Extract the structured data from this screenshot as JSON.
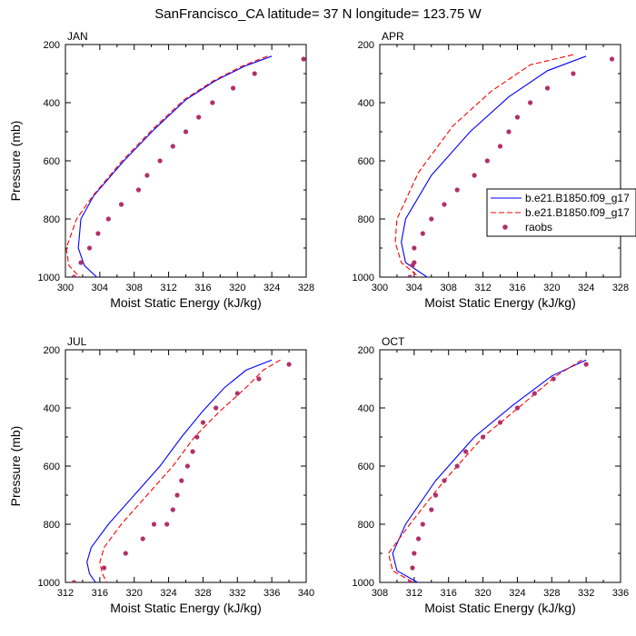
{
  "figure": {
    "title": "SanFrancisco_CA  latitude= 37 N longitude= 123.75 W"
  },
  "colors": {
    "model1": "#0000ff",
    "model2": "#ff0000",
    "raobs": "#b0306a"
  },
  "legend": {
    "placement": "right, between top-right and bottom-right panels",
    "entries": [
      {
        "label": "b.e21.B1850.f09_g17",
        "style": "solid",
        "color": "#0000ff"
      },
      {
        "label": "b.e21.B1850.f09_g17",
        "style": "dashed",
        "color": "#ff0000"
      },
      {
        "label": "raobs",
        "style": "dot",
        "color": "#b0306a"
      }
    ]
  },
  "chart_data": [
    {
      "type": "line",
      "label": "JAN",
      "xlabel": "Moist Static Energy (kJ/kg)",
      "ylabel": "Pressure (mb)",
      "xlim": [
        300,
        328
      ],
      "ylim": [
        200,
        1000
      ],
      "y_inverted": true,
      "xticks": [
        300,
        304,
        308,
        312,
        316,
        320,
        324,
        328
      ],
      "yticks": [
        200,
        400,
        600,
        800,
        1000
      ],
      "series": [
        {
          "style": "solid",
          "color": "#0000ff",
          "x": [
            324.0,
            320.8,
            317.4,
            314.0,
            310.4,
            306.8,
            303.3,
            301.8,
            301.5,
            302.2,
            304.0
          ],
          "y": [
            240,
            275,
            325,
            390,
            490,
            600,
            720,
            800,
            900,
            960,
            1010
          ]
        },
        {
          "style": "dashed",
          "color": "#ff0000",
          "x": [
            323.5,
            320.5,
            317.2,
            313.8,
            310.2,
            306.6,
            303.2,
            301.3,
            300.1,
            300.4,
            302.0
          ],
          "y": [
            240,
            275,
            325,
            390,
            490,
            600,
            720,
            800,
            900,
            960,
            1010
          ]
        },
        {
          "style": "dot",
          "color": "#b0306a",
          "x": [
            327.7,
            322.0,
            319.5,
            317.1,
            315.5,
            314.0,
            312.5,
            311.0,
            309.5,
            308.5,
            306.5,
            305.0,
            303.8,
            302.8,
            301.8,
            301.0
          ],
          "y": [
            250,
            300,
            350,
            400,
            450,
            500,
            550,
            600,
            650,
            700,
            750,
            800,
            850,
            900,
            950,
            1000
          ]
        }
      ]
    },
    {
      "type": "line",
      "label": "APR",
      "xlabel": "Moist Static Energy (kJ/kg)",
      "ylabel": "",
      "xlim": [
        300,
        328
      ],
      "ylim": [
        200,
        1000
      ],
      "y_inverted": true,
      "xticks": [
        300,
        304,
        308,
        312,
        316,
        320,
        324,
        328
      ],
      "yticks": [
        200,
        400,
        600,
        800,
        1000
      ],
      "series": [
        {
          "style": "solid",
          "color": "#0000ff",
          "x": [
            324.0,
            319.5,
            315.0,
            310.5,
            306.0,
            303.0,
            302.5,
            303.0,
            306.0
          ],
          "y": [
            240,
            290,
            380,
            500,
            650,
            800,
            880,
            950,
            1010
          ]
        },
        {
          "style": "dashed",
          "color": "#ff0000",
          "x": [
            322.5,
            317.5,
            313.0,
            308.5,
            304.5,
            302.0,
            301.8,
            302.5,
            305.0
          ],
          "y": [
            235,
            270,
            360,
            480,
            640,
            800,
            880,
            950,
            1010
          ]
        },
        {
          "style": "dot",
          "color": "#b0306a",
          "x": [
            327.0,
            322.5,
            319.5,
            317.5,
            316.0,
            315.0,
            314.0,
            312.5,
            311.0,
            309.0,
            307.5,
            306.0,
            305.0,
            304.0,
            304.0,
            303.8,
            303.5
          ],
          "y": [
            250,
            300,
            350,
            400,
            450,
            500,
            550,
            600,
            650,
            700,
            750,
            800,
            850,
            900,
            950,
            960,
            1000
          ]
        }
      ]
    },
    {
      "type": "line",
      "label": "JUL",
      "xlabel": "Moist Static Energy (kJ/kg)",
      "ylabel": "Pressure (mb)",
      "xlim": [
        312,
        340
      ],
      "ylim": [
        200,
        1000
      ],
      "y_inverted": true,
      "xticks": [
        312,
        316,
        320,
        324,
        328,
        332,
        336,
        340
      ],
      "yticks": [
        200,
        400,
        600,
        800,
        1000
      ],
      "series": [
        {
          "style": "solid",
          "color": "#0000ff",
          "x": [
            336.0,
            333.0,
            330.5,
            328.0,
            325.5,
            323.0,
            320.0,
            317.0,
            315.0,
            314.5,
            314.8,
            315.5
          ],
          "y": [
            235,
            270,
            330,
            410,
            500,
            600,
            700,
            800,
            880,
            930,
            970,
            1000
          ]
        },
        {
          "style": "dashed",
          "color": "#ff0000",
          "x": [
            337.0,
            335.0,
            333.0,
            330.0,
            327.0,
            324.5,
            321.5,
            318.5,
            316.5,
            316.0,
            316.3,
            316.8
          ],
          "y": [
            235,
            270,
            330,
            410,
            500,
            600,
            700,
            800,
            880,
            930,
            970,
            1000
          ]
        },
        {
          "style": "dot",
          "color": "#b0306a",
          "x": [
            338.0,
            334.5,
            332.0,
            329.5,
            328.0,
            327.3,
            326.8,
            326.2,
            325.5,
            325.0,
            324.5,
            323.8,
            322.3,
            321.0,
            319.0,
            316.5,
            313.0
          ],
          "y": [
            250,
            300,
            350,
            400,
            450,
            500,
            550,
            600,
            650,
            700,
            750,
            800,
            800,
            850,
            900,
            950,
            1000
          ]
        }
      ]
    },
    {
      "type": "line",
      "label": "OCT",
      "xlabel": "Moist Static Energy (kJ/kg)",
      "ylabel": "",
      "xlim": [
        308,
        336
      ],
      "ylim": [
        200,
        1000
      ],
      "y_inverted": true,
      "xticks": [
        308,
        312,
        316,
        320,
        324,
        328,
        332,
        336
      ],
      "yticks": [
        200,
        400,
        600,
        800,
        1000
      ],
      "series": [
        {
          "style": "solid",
          "color": "#0000ff",
          "x": [
            332.0,
            328.0,
            323.5,
            319.0,
            314.5,
            311.0,
            309.5,
            310.0,
            313.0
          ],
          "y": [
            235,
            290,
            390,
            500,
            650,
            800,
            900,
            960,
            1010
          ]
        },
        {
          "style": "dashed",
          "color": "#ff0000",
          "x": [
            331.5,
            328.5,
            324.5,
            320.0,
            315.5,
            311.5,
            309.0,
            309.5,
            312.5
          ],
          "y": [
            235,
            290,
            390,
            500,
            650,
            800,
            900,
            960,
            1010
          ]
        },
        {
          "style": "dot",
          "color": "#b0306a",
          "x": [
            332.0,
            328.2,
            326.0,
            324.0,
            322.0,
            320.0,
            318.0,
            317.0,
            315.5,
            314.5,
            314.0,
            313.0,
            312.5,
            312.0,
            311.8,
            311.5
          ],
          "y": [
            250,
            300,
            350,
            400,
            450,
            500,
            550,
            600,
            650,
            700,
            750,
            800,
            850,
            900,
            950,
            1000
          ]
        }
      ]
    }
  ]
}
